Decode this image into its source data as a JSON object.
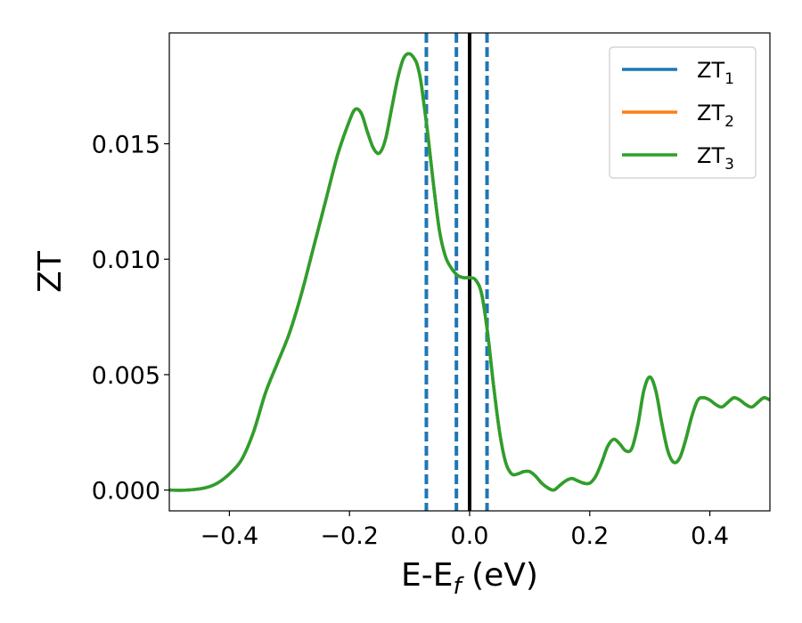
{
  "chart_data": {
    "type": "line",
    "xlabel": {
      "main": "E-E",
      "sub": "f",
      "tail": " (eV)"
    },
    "ylabel": "ZT",
    "xlim": [
      -0.5,
      0.5
    ],
    "ylim": [
      -0.0009,
      0.0198
    ],
    "x_ticks": [
      -0.4,
      -0.2,
      0.0,
      0.2,
      0.4
    ],
    "x_tick_labels": [
      "−0.4",
      "−0.2",
      "0.0",
      "0.2",
      "0.4"
    ],
    "y_ticks": [
      0.0,
      0.005,
      0.01,
      0.015
    ],
    "y_tick_labels": [
      "0.000",
      "0.005",
      "0.010",
      "0.015"
    ],
    "grid": false,
    "legend_position": "top-right",
    "series": [
      {
        "name": "ZT",
        "sub": "1",
        "color": "#1f77b4",
        "data_ref": "curve"
      },
      {
        "name": "ZT",
        "sub": "2",
        "color": "#ff7f0e",
        "data_ref": "curve"
      },
      {
        "name": "ZT",
        "sub": "3",
        "color": "#2ca02c",
        "data_ref": "curve"
      }
    ],
    "curve": {
      "x": [
        -0.5,
        -0.47,
        -0.44,
        -0.42,
        -0.4,
        -0.38,
        -0.36,
        -0.34,
        -0.32,
        -0.3,
        -0.28,
        -0.26,
        -0.24,
        -0.22,
        -0.2,
        -0.19,
        -0.18,
        -0.17,
        -0.16,
        -0.15,
        -0.14,
        -0.13,
        -0.12,
        -0.11,
        -0.1,
        -0.09,
        -0.085,
        -0.08,
        -0.07,
        -0.06,
        -0.05,
        -0.04,
        -0.03,
        -0.02,
        -0.01,
        0.0,
        0.01,
        0.02,
        0.03,
        0.04,
        0.05,
        0.06,
        0.07,
        0.08,
        0.09,
        0.1,
        0.11,
        0.12,
        0.13,
        0.14,
        0.15,
        0.16,
        0.17,
        0.18,
        0.19,
        0.2,
        0.21,
        0.22,
        0.23,
        0.24,
        0.25,
        0.26,
        0.27,
        0.28,
        0.29,
        0.3,
        0.31,
        0.32,
        0.33,
        0.34,
        0.35,
        0.36,
        0.37,
        0.38,
        0.39,
        0.4,
        0.41,
        0.42,
        0.43,
        0.44,
        0.45,
        0.46,
        0.47,
        0.48,
        0.49,
        0.5
      ],
      "y": [
        0.0,
        0.0,
        0.0001,
        0.0003,
        0.0007,
        0.0013,
        0.0025,
        0.0042,
        0.0055,
        0.0068,
        0.0085,
        0.0105,
        0.0125,
        0.0145,
        0.016,
        0.0165,
        0.0163,
        0.0155,
        0.0148,
        0.0146,
        0.0152,
        0.0165,
        0.0178,
        0.0187,
        0.0189,
        0.0186,
        0.0182,
        0.0175,
        0.0155,
        0.0132,
        0.0112,
        0.0101,
        0.0096,
        0.0093,
        0.0092,
        0.0092,
        0.0091,
        0.0085,
        0.0068,
        0.0045,
        0.0025,
        0.0012,
        0.0007,
        0.0007,
        0.0008,
        0.0008,
        0.0006,
        0.0003,
        0.0001,
        0.0,
        0.0002,
        0.0004,
        0.0005,
        0.0004,
        0.0003,
        0.0003,
        0.0006,
        0.0012,
        0.0019,
        0.0022,
        0.002,
        0.0017,
        0.0018,
        0.0028,
        0.0043,
        0.0049,
        0.0043,
        0.0029,
        0.0017,
        0.0012,
        0.0014,
        0.0022,
        0.0032,
        0.0039,
        0.004,
        0.0039,
        0.0037,
        0.0036,
        0.0038,
        0.004,
        0.0039,
        0.0037,
        0.0036,
        0.0038,
        0.004,
        0.0039
      ]
    },
    "vlines": [
      {
        "x": -0.072,
        "style": "dashed",
        "color": "#1f77b4"
      },
      {
        "x": -0.022,
        "style": "dashed",
        "color": "#1f77b4"
      },
      {
        "x": 0.0,
        "style": "solid",
        "color": "#000000"
      },
      {
        "x": 0.029,
        "style": "dashed",
        "color": "#1f77b4"
      }
    ]
  }
}
